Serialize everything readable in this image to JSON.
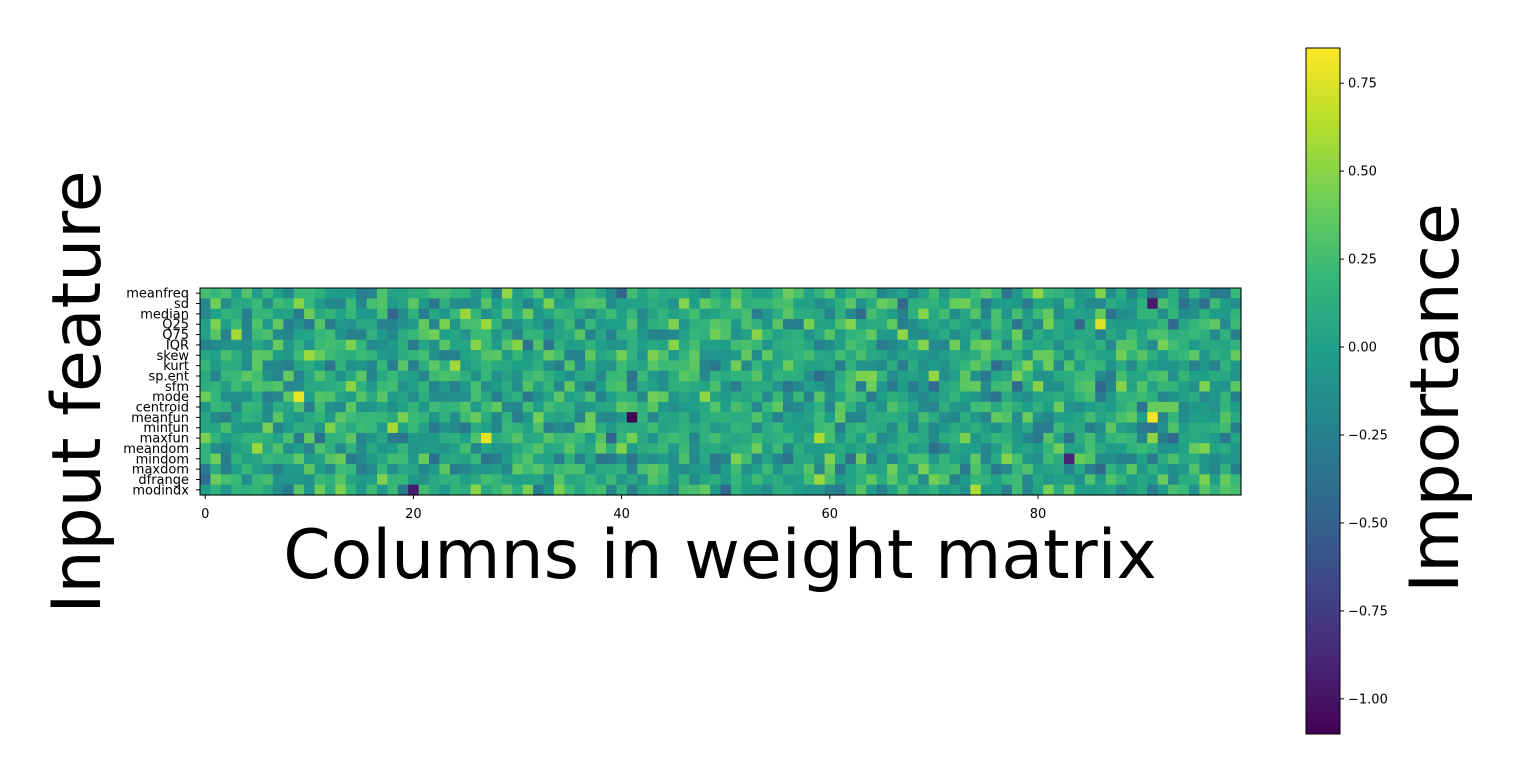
{
  "chart_data": {
    "type": "heatmap",
    "xlabel": "Columns in weight matrix",
    "ylabel": "Input feature",
    "colorbar_label": "Importance",
    "colormap": "viridis",
    "n_columns": 100,
    "x_range": [
      0,
      99
    ],
    "x_ticks": [
      0,
      20,
      40,
      60,
      80
    ],
    "y_categories": [
      "meanfreq",
      "sd",
      "median",
      "Q25",
      "Q75",
      "IQR",
      "skew",
      "kurt",
      "sp.ent",
      "sfm",
      "mode",
      "centroid",
      "meanfun",
      "minfun",
      "maxfun",
      "meandom",
      "mindom",
      "maxdom",
      "dfrange",
      "modindx"
    ],
    "value_range": [
      -1.1,
      0.85
    ],
    "colorbar_ticks": [
      {
        "value": 0.75,
        "label": "0.75"
      },
      {
        "value": 0.5,
        "label": "0.50"
      },
      {
        "value": 0.25,
        "label": "0.25"
      },
      {
        "value": 0.0,
        "label": "0.00"
      },
      {
        "value": -0.25,
        "label": "−0.25"
      },
      {
        "value": -0.5,
        "label": "−0.50"
      },
      {
        "value": -0.75,
        "label": "−0.75"
      },
      {
        "value": -1.0,
        "label": "−1.00"
      }
    ],
    "grid": false,
    "notable_cells": [
      {
        "feature": "sd",
        "column": 91,
        "value": -0.95
      },
      {
        "feature": "Q25",
        "column": 86,
        "value": 0.75
      },
      {
        "feature": "mode",
        "column": 9,
        "value": 0.8
      },
      {
        "feature": "meanfun",
        "column": 41,
        "value": -1.08
      },
      {
        "feature": "meanfun",
        "column": 91,
        "value": 0.82
      },
      {
        "feature": "maxfun",
        "column": 27,
        "value": 0.78
      },
      {
        "feature": "mindom",
        "column": 83,
        "value": -0.9
      },
      {
        "feature": "modindx",
        "column": 20,
        "value": -0.95
      }
    ]
  }
}
